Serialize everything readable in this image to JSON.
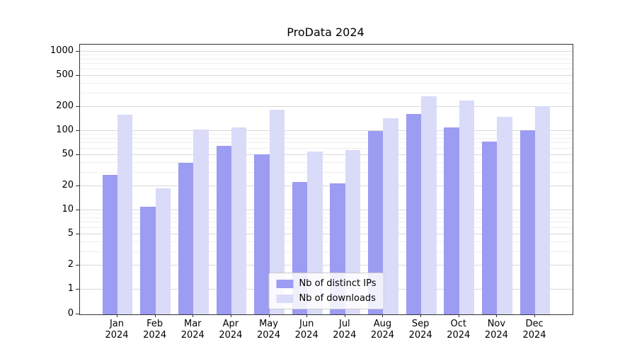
{
  "chart_data": {
    "type": "bar",
    "title": "ProData 2024",
    "categories": [
      "Jan 2024",
      "Feb 2024",
      "Mar 2024",
      "Apr 2024",
      "May 2024",
      "Jun 2024",
      "Jul 2024",
      "Aug 2024",
      "Sep 2024",
      "Oct 2024",
      "Nov 2024",
      "Dec 2024"
    ],
    "series": [
      {
        "name": "Nb of distinct IPs",
        "color": "#9c9cf2",
        "values": [
          28,
          11,
          40,
          65,
          51,
          23,
          22,
          100,
          165,
          110,
          73,
          102
        ]
      },
      {
        "name": "Nb of downloads",
        "color": "#dadaf9",
        "values": [
          160,
          19,
          105,
          110,
          185,
          55,
          58,
          145,
          275,
          240,
          150,
          205
        ]
      }
    ],
    "yscale": "symlog",
    "yticks": [
      0,
      1,
      2,
      5,
      10,
      20,
      50,
      100,
      200,
      500,
      1000
    ],
    "yticks_minor": [
      3,
      4,
      6,
      7,
      8,
      9,
      30,
      40,
      60,
      70,
      80,
      90,
      300,
      400,
      600,
      700,
      800,
      900
    ],
    "ylim": [
      0,
      1300
    ],
    "grid": true,
    "legend_position": "lower center",
    "style": {
      "grid_major_color": "#d9d9d9",
      "grid_minor_color": "#efefef",
      "axis_color": "#333333",
      "background": "#ffffff"
    }
  }
}
